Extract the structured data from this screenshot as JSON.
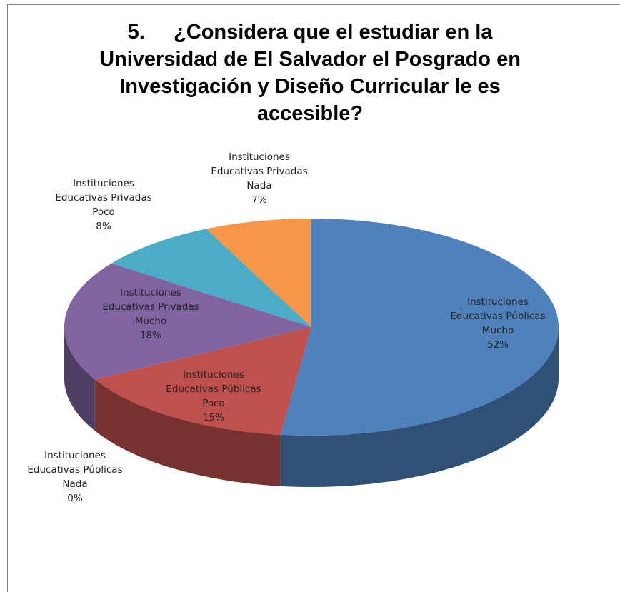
{
  "chart_data": {
    "type": "pie",
    "title": "5.     ¿Considera que el estudiar en la Universidad de El Salvador el Posgrado en Investigación y Diseño Curricular le es accesible?",
    "categories": [
      "Instituciones Educativas Públicas Mucho",
      "Instituciones Educativas Públicas Poco",
      "Instituciones Educativas Públicas Nada",
      "Instituciones Educativas Privadas Mucho",
      "Instituciones Educativas Privadas Poco",
      "Instituciones Educativas Privadas Nada"
    ],
    "values": [
      52,
      15,
      0,
      18,
      8,
      7
    ],
    "value_labels": [
      "52%",
      "15%",
      "0%",
      "18%",
      "8%",
      "7%"
    ],
    "colors": [
      "#4f81bd",
      "#c0504d",
      "#9bbb59",
      "#8064a2",
      "#4bacc6",
      "#f79646"
    ]
  }
}
